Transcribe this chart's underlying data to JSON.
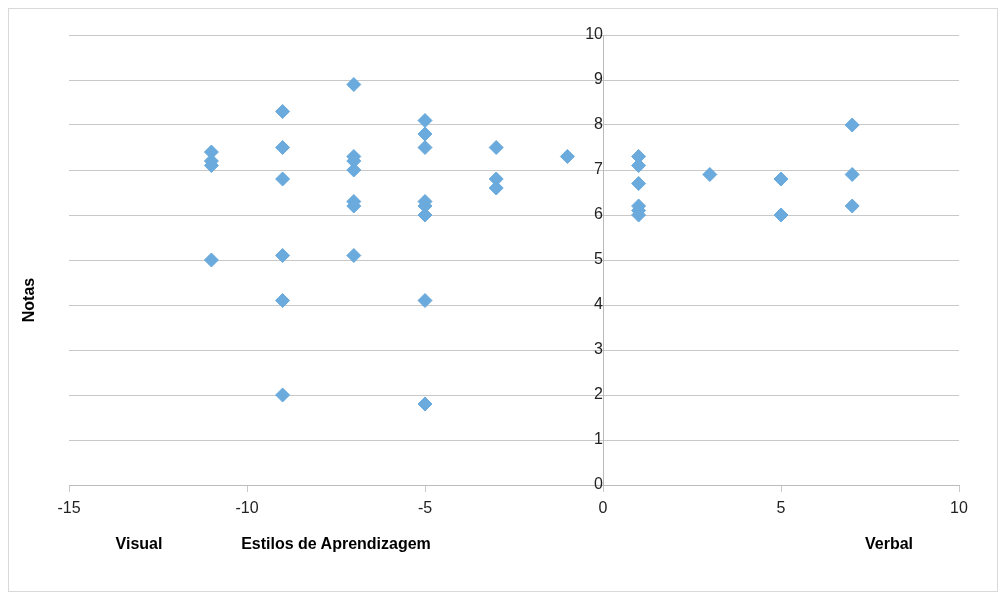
{
  "chart_data": {
    "type": "scatter",
    "xlabel": "Estilos de Aprendizagem",
    "ylabel": "Notas",
    "annotations": [
      "Visual",
      "Verbal"
    ],
    "xlim": [
      -15,
      10
    ],
    "xticks": [
      -15,
      -10,
      -5,
      0,
      5,
      10
    ],
    "ylim": [
      0,
      10
    ],
    "yticks": [
      0,
      1,
      2,
      3,
      4,
      5,
      6,
      7,
      8,
      9,
      10
    ],
    "grid": "y",
    "marker": "diamond",
    "legend": false,
    "series": [
      {
        "color": "#6aaadc",
        "x": [
          -11,
          -11,
          -11,
          -11,
          -9,
          -9,
          -9,
          -9,
          -9,
          -9,
          -7,
          -7,
          -7,
          -7,
          -7,
          -7,
          -7,
          -5,
          -5,
          -5,
          -5,
          -5,
          -5,
          -5,
          -5,
          -3,
          -3,
          -3,
          -1,
          1,
          1,
          1,
          1,
          1,
          1,
          3,
          5,
          5,
          7,
          7,
          7
        ],
        "values": [
          7.4,
          7.2,
          7.1,
          5.0,
          8.3,
          7.5,
          6.8,
          5.1,
          4.1,
          2.0,
          8.9,
          7.3,
          7.2,
          7.0,
          6.3,
          6.2,
          5.1,
          8.1,
          7.8,
          7.5,
          6.3,
          6.2,
          6.0,
          4.1,
          1.8,
          7.5,
          6.8,
          6.6,
          7.3,
          7.3,
          7.1,
          6.7,
          6.2,
          6.1,
          6.0,
          6.9,
          6.8,
          6.0,
          8.0,
          6.9,
          6.2
        ]
      }
    ]
  }
}
